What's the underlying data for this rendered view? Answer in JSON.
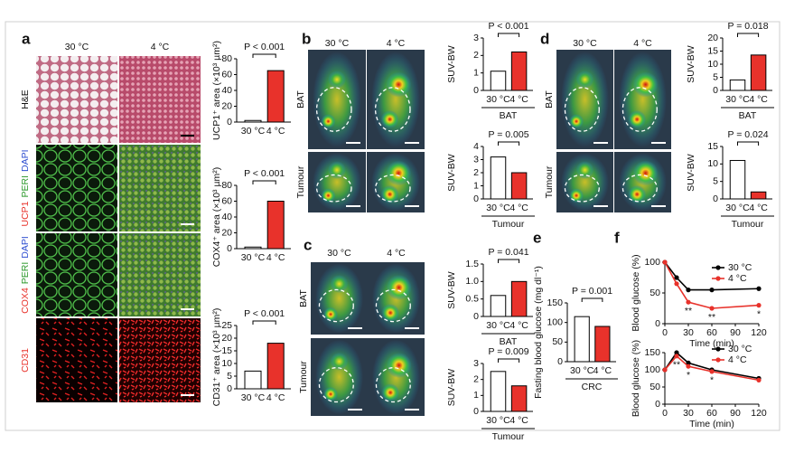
{
  "panels": [
    {
      "label": "a",
      "columns": [
        "30 °C",
        "4 °C"
      ],
      "rows": [
        [
          "H&E"
        ],
        [
          "UCP1",
          "PERI",
          "DAPI"
        ],
        [
          "COX4",
          "PERI",
          "DAPI"
        ],
        [
          "CD31"
        ]
      ]
    },
    {
      "label": "b",
      "columns": [
        "30 °C",
        "4 °C"
      ],
      "rows": [
        [
          "BAT"
        ],
        [
          "Tumour"
        ]
      ]
    },
    {
      "label": "c",
      "columns": [
        "30 °C",
        "4 °C"
      ],
      "rows": [
        [
          "BAT"
        ],
        [
          "Tumour"
        ]
      ]
    },
    {
      "label": "d",
      "columns": [
        "30 °C",
        "4 °C"
      ],
      "rows": [
        [
          "BAT"
        ],
        [
          "Tumour"
        ]
      ]
    },
    {
      "label": "e"
    },
    {
      "label": "f"
    }
  ],
  "chart_data": [
    {
      "type": "bar",
      "ylabel": "UCP1⁺ area (×10³ µm²)",
      "categories": [
        "30 °C",
        "4 °C"
      ],
      "values": [
        2,
        65
      ],
      "colors": [
        "#ffffff",
        "#e8322b"
      ],
      "ylim": [
        0,
        80
      ],
      "yticks": [
        0,
        20,
        40,
        60,
        80
      ],
      "annotation": "P < 0.001"
    },
    {
      "type": "bar",
      "ylabel": "COX4⁺ area (×10³ µm²)",
      "categories": [
        "30 °C",
        "4 °C"
      ],
      "values": [
        2,
        60
      ],
      "colors": [
        "#ffffff",
        "#e8322b"
      ],
      "ylim": [
        0,
        80
      ],
      "yticks": [
        0,
        20,
        40,
        60,
        80
      ],
      "annotation": "P < 0.001"
    },
    {
      "type": "bar",
      "ylabel": "CD31⁺ area (×10³ µm²)",
      "categories": [
        "30 °C",
        "4 °C"
      ],
      "values": [
        7,
        18
      ],
      "colors": [
        "#ffffff",
        "#e8322b"
      ],
      "ylim": [
        0,
        25
      ],
      "yticks": [
        0,
        5,
        10,
        15,
        20,
        25
      ],
      "annotation": "P < 0.001"
    },
    {
      "type": "bar",
      "ylabel": "SUV-BW",
      "categories": [
        "30 °C",
        "4 °C"
      ],
      "values": [
        1.1,
        2.2
      ],
      "colors": [
        "#ffffff",
        "#e8322b"
      ],
      "ylim": [
        0,
        3
      ],
      "yticks": [
        0,
        1,
        2,
        3
      ],
      "annotation": "P < 0.001",
      "group": "BAT"
    },
    {
      "type": "bar",
      "ylabel": "SUV-BW",
      "categories": [
        "30 °C",
        "4 °C"
      ],
      "values": [
        3.2,
        2.0
      ],
      "colors": [
        "#ffffff",
        "#e8322b"
      ],
      "ylim": [
        0,
        4
      ],
      "yticks": [
        0,
        1,
        2,
        3,
        4
      ],
      "annotation": "P = 0.005",
      "group": "Tumour"
    },
    {
      "type": "bar",
      "ylabel": "SUV-BW",
      "categories": [
        "30 °C",
        "4 °C"
      ],
      "values": [
        0.6,
        1.0
      ],
      "colors": [
        "#ffffff",
        "#e8322b"
      ],
      "ylim": [
        0,
        1.5
      ],
      "yticks": [
        0,
        0.5,
        {
          "value": 1,
          "label": "1.0"
        },
        1.5
      ],
      "annotation": "P = 0.041",
      "group": "BAT"
    },
    {
      "type": "bar",
      "ylabel": "SUV-BW",
      "categories": [
        "30 °C",
        "4 °C"
      ],
      "values": [
        2.5,
        1.6
      ],
      "colors": [
        "#ffffff",
        "#e8322b"
      ],
      "ylim": [
        0,
        3
      ],
      "yticks": [
        0,
        1,
        2,
        3
      ],
      "annotation": "P = 0.009",
      "group": "Tumour"
    },
    {
      "type": "bar",
      "ylabel": "SUV-BW",
      "categories": [
        "30 °C",
        "4 °C"
      ],
      "values": [
        4,
        13.5
      ],
      "colors": [
        "#ffffff",
        "#e8322b"
      ],
      "ylim": [
        0,
        20
      ],
      "yticks": [
        0,
        5,
        10,
        15,
        20
      ],
      "annotation": "P = 0.018",
      "group": "BAT"
    },
    {
      "type": "bar",
      "ylabel": "SUV-BW",
      "categories": [
        "30 °C",
        "4 °C"
      ],
      "values": [
        11,
        2
      ],
      "colors": [
        "#ffffff",
        "#e8322b"
      ],
      "ylim": [
        0,
        15
      ],
      "yticks": [
        0,
        5,
        10,
        15
      ],
      "annotation": "P = 0.024",
      "group": "Tumour"
    },
    {
      "type": "bar",
      "ylabel": "Fasting blood glucose (mg dl⁻¹)",
      "categories": [
        "30 °C",
        "4 °C"
      ],
      "values": [
        115,
        90
      ],
      "colors": [
        "#ffffff",
        "#e8322b"
      ],
      "ylim": [
        0,
        150
      ],
      "yticks": [
        0,
        50,
        100,
        150
      ],
      "annotation": "P = 0.001",
      "group": "CRC"
    },
    {
      "type": "line",
      "ylabel": "Blood glucose (%)",
      "xlabel": "Time (min)",
      "x": [
        0,
        15,
        30,
        60,
        120
      ],
      "series": [
        {
          "name": "30 °C",
          "color": "#000000",
          "values": [
            100,
            75,
            55,
            55,
            57
          ]
        },
        {
          "name": "4 °C",
          "color": "#e8322b",
          "values": [
            100,
            65,
            35,
            25,
            30
          ]
        }
      ],
      "xlim": [
        0,
        120
      ],
      "ylim": [
        0,
        100
      ],
      "xticks": [
        0,
        30,
        60,
        90,
        120
      ],
      "yticks": [
        0,
        50,
        100
      ],
      "annotations": [
        "**",
        "**",
        "*"
      ]
    },
    {
      "type": "line",
      "ylabel": "Blood glucose (%)",
      "xlabel": "Time (min)",
      "x": [
        0,
        15,
        30,
        60,
        120
      ],
      "series": [
        {
          "name": "30 °C",
          "color": "#000000",
          "values": [
            100,
            150,
            120,
            100,
            75
          ]
        },
        {
          "name": "4 °C",
          "color": "#e8322b",
          "values": [
            100,
            140,
            110,
            95,
            70
          ]
        }
      ],
      "xlim": [
        0,
        120
      ],
      "ylim": [
        0,
        150
      ],
      "xticks": [
        0,
        30,
        60,
        90,
        120
      ],
      "yticks": [
        0,
        50,
        100,
        150
      ],
      "annotations": [
        "**",
        "*",
        "*"
      ]
    }
  ]
}
